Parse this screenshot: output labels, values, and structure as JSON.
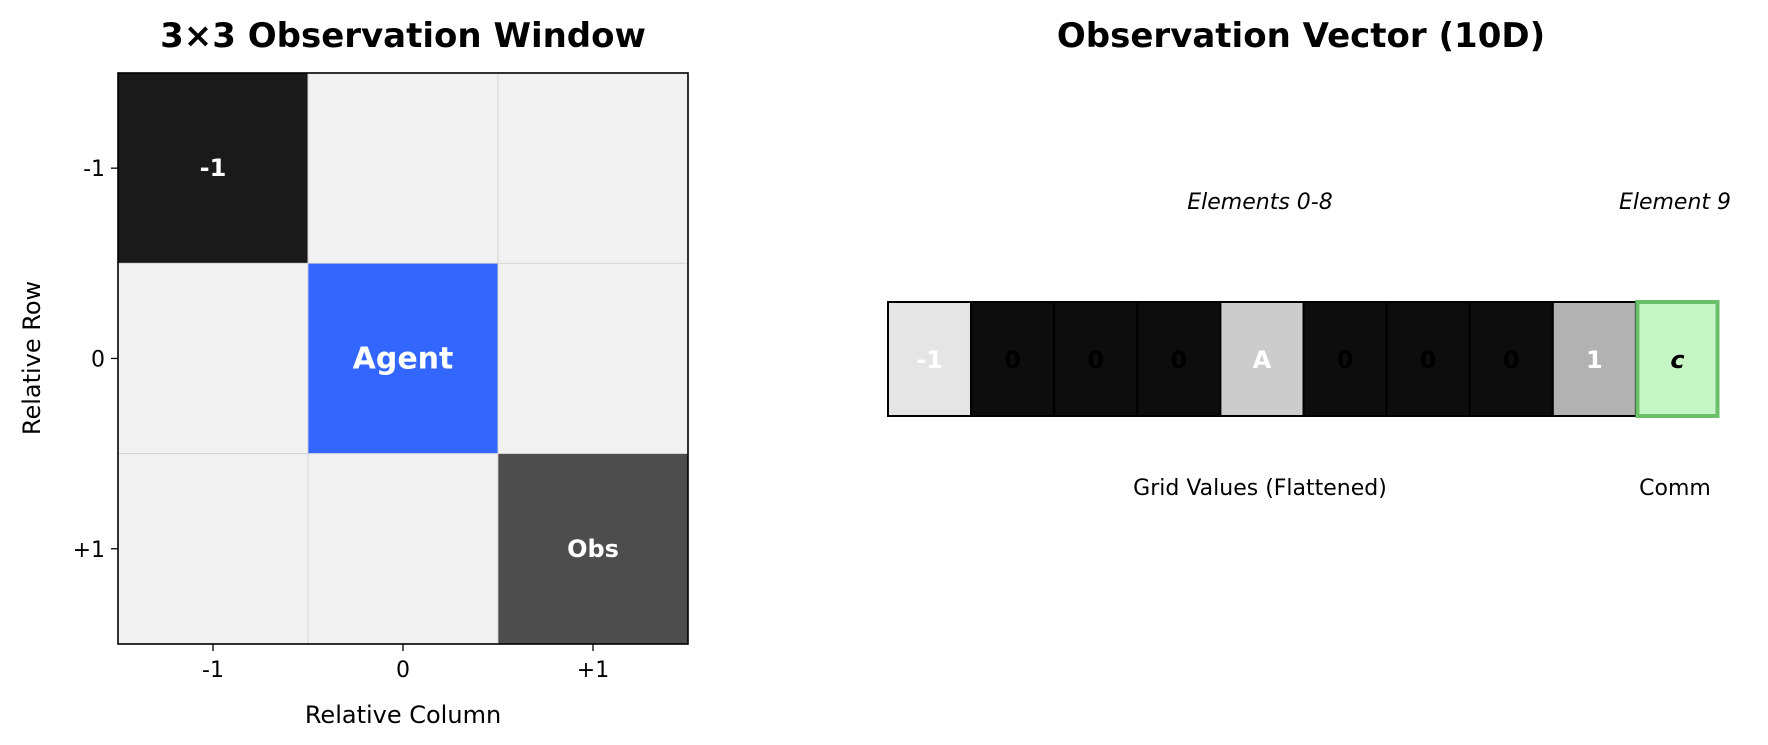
{
  "chart_data": [
    {
      "type": "heatmap",
      "title": "3×3 Observation Window",
      "xlabel": "Relative Column",
      "ylabel": "Relative Row",
      "x_ticks": [
        "-1",
        "0",
        "+1"
      ],
      "y_ticks": [
        "-1",
        "0",
        "+1"
      ],
      "grid": true,
      "cells": [
        [
          {
            "label": "-1",
            "color": "#1a1a1a"
          },
          {
            "label": "",
            "color": "#f1f1f1"
          },
          {
            "label": "",
            "color": "#f1f1f1"
          }
        ],
        [
          {
            "label": "",
            "color": "#f1f1f1"
          },
          {
            "label": "Agent",
            "color": "#3366ff"
          },
          {
            "label": "",
            "color": "#f1f1f1"
          }
        ],
        [
          {
            "label": "",
            "color": "#f1f1f1"
          },
          {
            "label": "",
            "color": "#f1f1f1"
          },
          {
            "label": "Obs",
            "color": "#4d4d4d"
          }
        ]
      ]
    },
    {
      "type": "table",
      "title": "Observation Vector (10D)",
      "group_labels_top": [
        "Elements 0-8",
        "Element 9"
      ],
      "group_labels_bottom": [
        "Grid Values (Flattened)",
        "Comm"
      ],
      "cells": [
        {
          "label": "-1",
          "color": "#e5e5e5",
          "text_color": "#ffffff"
        },
        {
          "label": "0",
          "color": "#0d0d0d",
          "text_color": "#000000"
        },
        {
          "label": "0",
          "color": "#0d0d0d",
          "text_color": "#000000"
        },
        {
          "label": "0",
          "color": "#0d0d0d",
          "text_color": "#000000"
        },
        {
          "label": "A",
          "color": "#cccccc",
          "text_color": "#ffffff"
        },
        {
          "label": "0",
          "color": "#0d0d0d",
          "text_color": "#000000"
        },
        {
          "label": "0",
          "color": "#0d0d0d",
          "text_color": "#000000"
        },
        {
          "label": "0",
          "color": "#0d0d0d",
          "text_color": "#000000"
        },
        {
          "label": "1",
          "color": "#b2b2b2",
          "text_color": "#ffffff"
        },
        {
          "label": "c",
          "color": "#c6f5c6",
          "text_color": "#000000",
          "border": "#6abf69",
          "italic": true
        }
      ]
    }
  ]
}
